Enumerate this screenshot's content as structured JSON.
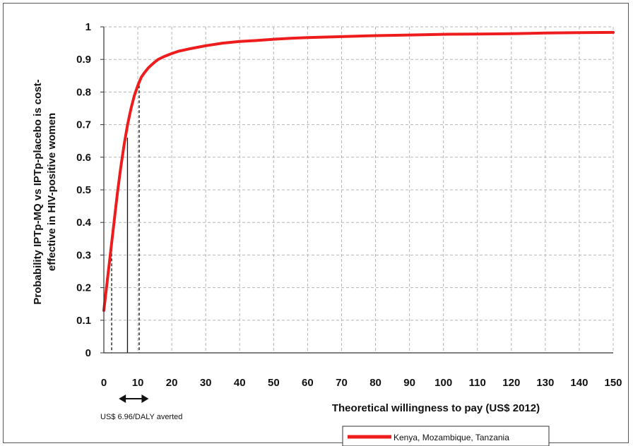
{
  "chart_data": {
    "type": "line",
    "title": "",
    "xlabel": "Theoretical willingness to pay (US$ 2012)",
    "ylabel_line1": "Probability IPTp-MQ vs IPTp-placebo is cost-",
    "ylabel_line2": "effective in HIV-positive women",
    "xlim": [
      0,
      150
    ],
    "ylim": [
      0,
      1
    ],
    "xticks": [
      0,
      10,
      20,
      30,
      40,
      50,
      60,
      70,
      80,
      90,
      100,
      110,
      120,
      130,
      140,
      150
    ],
    "yticks": [
      0,
      0.1,
      0.2,
      0.3,
      0.4,
      0.5,
      0.6,
      0.7,
      0.8,
      0.9,
      1
    ],
    "ytick_labels": [
      "0",
      "0.1",
      "0.2",
      "0.3",
      "0.4",
      "0.5",
      "0.6",
      "0.7",
      "0.8",
      "0.9",
      "1"
    ],
    "grid": true,
    "legend_position": "bottom-right",
    "series": [
      {
        "name": "Kenya, Mozambique, Tanzania",
        "color": "#ee1c1c",
        "x": [
          0,
          1,
          2,
          3,
          4,
          5,
          6,
          7,
          8,
          9,
          10,
          11,
          12,
          13,
          14,
          15,
          16,
          18,
          20,
          22,
          25,
          28,
          30,
          35,
          40,
          45,
          50,
          55,
          60,
          70,
          80,
          90,
          100,
          110,
          120,
          130,
          140,
          150
        ],
        "y": [
          0.13,
          0.22,
          0.31,
          0.4,
          0.49,
          0.57,
          0.64,
          0.7,
          0.75,
          0.79,
          0.82,
          0.845,
          0.86,
          0.873,
          0.883,
          0.892,
          0.9,
          0.91,
          0.918,
          0.925,
          0.932,
          0.938,
          0.942,
          0.95,
          0.955,
          0.958,
          0.962,
          0.965,
          0.967,
          0.97,
          0.973,
          0.975,
          0.977,
          0.978,
          0.979,
          0.981,
          0.982,
          0.983
        ]
      }
    ],
    "reference_lines": [
      {
        "x": 2.3,
        "y": 0.35,
        "style": "dashed"
      },
      {
        "x": 6.96,
        "y": 0.66,
        "style": "solid"
      },
      {
        "x": 10.4,
        "y": 0.82,
        "style": "dashed"
      }
    ],
    "range_arrow": {
      "from": 4.4,
      "to": 13.2
    },
    "annotation": "US$ 6.96/DALY averted"
  }
}
